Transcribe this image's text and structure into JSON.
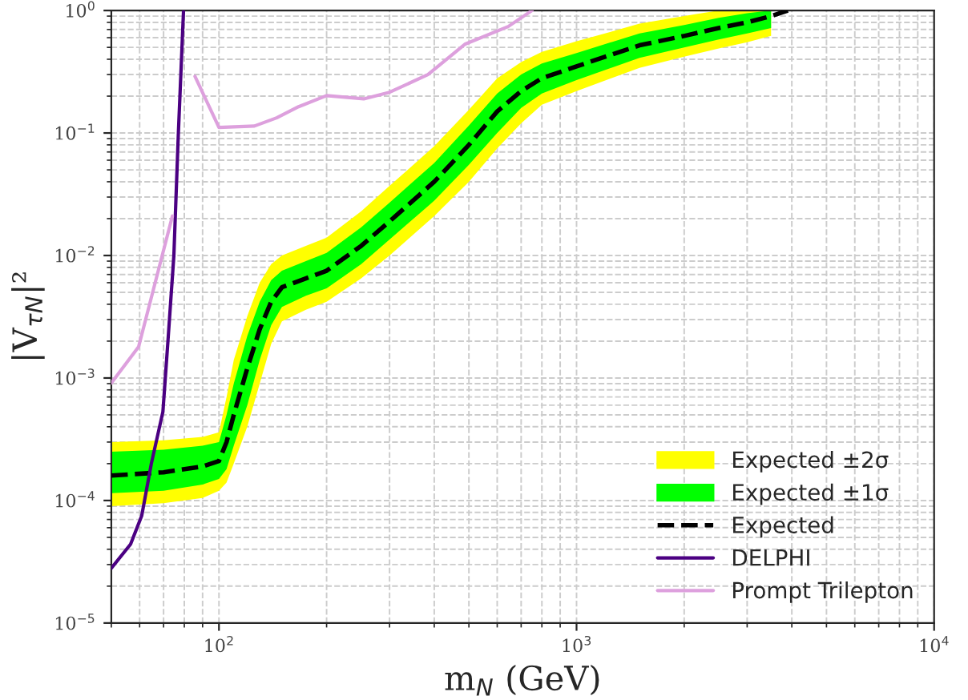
{
  "chart_data": {
    "type": "line",
    "xlabel": "m$_{N}$ (GeV)",
    "ylabel": "|V$_{τN}$|²",
    "log": "xy",
    "grid": true,
    "legend": "bottom right",
    "xlim": [
      50,
      10000
    ],
    "ylim": [
      1e-05,
      1
    ],
    "xticks": [
      {
        "value": 100,
        "label": "10$^{2}$"
      },
      {
        "value": 1000,
        "label": "10$^{3}$"
      },
      {
        "value": 10000,
        "label": "10$^{4}$"
      }
    ],
    "yticks": [
      {
        "value": 1e-05,
        "label": "10$^{−5}$"
      },
      {
        "value": 0.0001,
        "label": "10$^{−4}$"
      },
      {
        "value": 0.001,
        "label": "10$^{−3}$"
      },
      {
        "value": 0.01,
        "label": "10$^{−2}$"
      },
      {
        "value": 0.1,
        "label": "10$^{−1}$"
      },
      {
        "value": 1,
        "label": "10$^{0}$"
      }
    ],
    "series": [
      {
        "name": "Expected ±2σ",
        "color": "#ffff00",
        "x": [
          50,
          70,
          90,
          100,
          105,
          110,
          120,
          130,
          140,
          150,
          175,
          200,
          250,
          300,
          400,
          500,
          600,
          700,
          800,
          1000,
          1500,
          2000,
          2500,
          3000,
          3500
        ],
        "values": [
          null,
          null,
          null,
          null,
          null,
          null,
          null,
          null,
          null,
          null,
          null,
          null,
          null,
          null,
          null,
          null,
          null,
          null,
          null,
          null,
          null,
          null,
          null,
          null,
          null
        ],
        "lower": [
          9e-05,
          9.5e-05,
          0.000105,
          0.00012,
          0.00014,
          0.0002,
          0.0004,
          0.0009,
          0.0019,
          0.0029,
          0.0036,
          0.0042,
          0.0065,
          0.01,
          0.021,
          0.04,
          0.075,
          0.12,
          0.17,
          0.22,
          0.34,
          0.42,
          0.49,
          0.55,
          0.62
        ],
        "upper": [
          0.0003,
          0.00031,
          0.00033,
          0.00036,
          0.0007,
          0.0014,
          0.0032,
          0.006,
          0.0085,
          0.01,
          0.012,
          0.014,
          0.023,
          0.037,
          0.078,
          0.155,
          0.28,
          0.38,
          0.46,
          0.56,
          0.78,
          0.9,
          1.0,
          1.0,
          1.0
        ]
      },
      {
        "name": "Expected ±1σ",
        "color": "#00ff00",
        "x": [
          50,
          70,
          90,
          100,
          105,
          110,
          120,
          130,
          140,
          150,
          175,
          200,
          250,
          300,
          400,
          500,
          600,
          700,
          800,
          1000,
          1500,
          2000,
          2500,
          3000,
          3500
        ],
        "values": [
          null,
          null,
          null,
          null,
          null,
          null,
          null,
          null,
          null,
          null,
          null,
          null,
          null,
          null,
          null,
          null,
          null,
          null,
          null,
          null,
          null,
          null,
          null,
          null,
          null
        ],
        "lower": [
          0.000115,
          0.00012,
          0.000135,
          0.00015,
          0.00018,
          0.00028,
          0.0006,
          0.0014,
          0.0027,
          0.0038,
          0.0047,
          0.0054,
          0.0085,
          0.0135,
          0.028,
          0.055,
          0.1,
          0.16,
          0.21,
          0.27,
          0.41,
          0.5,
          0.58,
          0.65,
          0.72
        ],
        "upper": [
          0.00025,
          0.00026,
          0.00028,
          0.0003,
          0.0005,
          0.0009,
          0.0022,
          0.0042,
          0.0063,
          0.0075,
          0.009,
          0.0105,
          0.017,
          0.027,
          0.057,
          0.115,
          0.21,
          0.3,
          0.37,
          0.45,
          0.65,
          0.76,
          0.87,
          0.95,
          1.0
        ]
      },
      {
        "name": "Expected",
        "line_style": "dashed",
        "color": "#000000",
        "x": [
          50,
          70,
          90,
          100,
          105,
          110,
          120,
          130,
          140,
          150,
          175,
          200,
          250,
          300,
          400,
          500,
          600,
          700,
          800,
          1000,
          1500,
          2000,
          2500,
          3000,
          3500,
          3900
        ],
        "values": [
          0.00016,
          0.00017,
          0.00019,
          0.00021,
          0.0003,
          0.0005,
          0.0012,
          0.0025,
          0.0042,
          0.0055,
          0.0065,
          0.0075,
          0.012,
          0.019,
          0.04,
          0.08,
          0.15,
          0.22,
          0.28,
          0.35,
          0.52,
          0.62,
          0.72,
          0.8,
          0.9,
          1.0
        ]
      },
      {
        "name": "DELPHI",
        "line_style": "solid",
        "color": "#4b0082",
        "x": [
          50,
          56.6,
          60.8,
          64.7,
          69.7,
          72,
          74.8,
          77,
          79.6
        ],
        "values": [
          2.8e-05,
          4.4e-05,
          7.5e-05,
          0.0002,
          0.00053,
          0.002,
          0.01,
          0.1,
          1
        ]
      },
      {
        "name": "Prompt Trilepton",
        "line_style": "solid",
        "color": "#dda0dd",
        "x": [
          50,
          59.6,
          74.1,
          80,
          85.7,
          100,
          125.6,
          145,
          167,
          200,
          254,
          300,
          384,
          487,
          644,
          751
        ],
        "values": [
          0.00091,
          0.0018,
          0.021,
          null,
          0.29,
          0.111,
          0.114,
          0.133,
          0.164,
          0.202,
          0.19,
          0.215,
          0.3,
          0.53,
          0.74,
          1
        ]
      }
    ]
  }
}
